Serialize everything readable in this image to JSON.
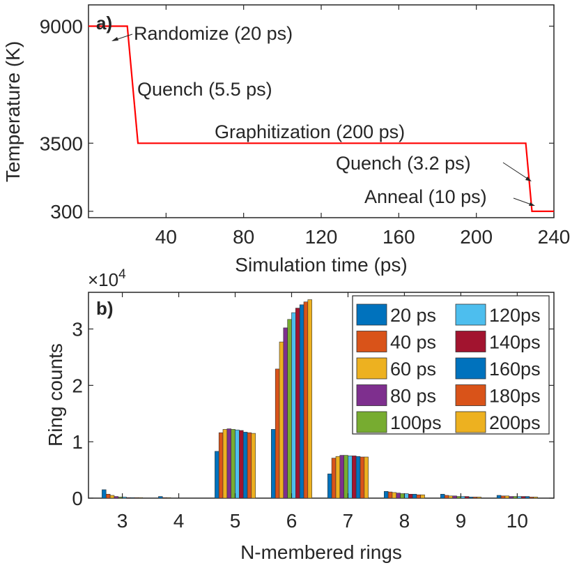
{
  "chart_data": [
    {
      "type": "line",
      "panel_label": "a)",
      "xlabel": "Simulation time (ps)",
      "ylabel": "Temperature (K)",
      "xlim": [
        0,
        240
      ],
      "ylim": [
        0,
        10000
      ],
      "xticks": [
        "40",
        "80",
        "120",
        "160",
        "200",
        "240"
      ],
      "yticks": [
        "300",
        "3500",
        "9000"
      ],
      "series": [
        {
          "name": "Temperature",
          "color": "#ff0000",
          "x": [
            0,
            20,
            25.5,
            225.5,
            228.7,
            240
          ],
          "y": [
            9000,
            9000,
            3500,
            3500,
            300,
            300
          ]
        }
      ],
      "annotations": [
        "Randomize (20 ps)",
        "Quench (5.5 ps)",
        "Graphitization (200 ps)",
        "Quench (3.2 ps)",
        "Anneal (10 ps)"
      ]
    },
    {
      "type": "bar",
      "panel_label": "b)",
      "xlabel": "N-membered rings",
      "ylabel": "Ring counts",
      "y_multiplier": "×10",
      "y_exponent": "4",
      "ylim": [
        0,
        3.65
      ],
      "yticks": [
        "0",
        "1",
        "2",
        "3"
      ],
      "categories": [
        "3",
        "4",
        "5",
        "6",
        "7",
        "8",
        "9",
        "10"
      ],
      "series": [
        {
          "name": "20 ps",
          "color": "#0072bd",
          "values": [
            0.15,
            0.03,
            0.83,
            1.22,
            0.43,
            0.12,
            0.07,
            0.05
          ]
        },
        {
          "name": "40 ps",
          "color": "#d95319",
          "values": [
            0.07,
            0.01,
            1.16,
            2.29,
            0.71,
            0.11,
            0.05,
            0.04
          ]
        },
        {
          "name": "60 ps",
          "color": "#edb120",
          "values": [
            0.05,
            0.01,
            1.22,
            2.77,
            0.74,
            0.1,
            0.04,
            0.04
          ]
        },
        {
          "name": "80 ps",
          "color": "#7e2f8e",
          "values": [
            0.03,
            0.0,
            1.23,
            3.02,
            0.76,
            0.09,
            0.04,
            0.03
          ]
        },
        {
          "name": "100ps",
          "color": "#77ac30",
          "values": [
            0.02,
            0.0,
            1.22,
            3.17,
            0.76,
            0.08,
            0.03,
            0.03
          ]
        },
        {
          "name": "120ps",
          "color": "#4dbeee",
          "values": [
            0.02,
            0.0,
            1.21,
            3.29,
            0.75,
            0.08,
            0.03,
            0.03
          ]
        },
        {
          "name": "140ps",
          "color": "#a2142f",
          "values": [
            0.01,
            0.0,
            1.2,
            3.37,
            0.75,
            0.07,
            0.03,
            0.03
          ]
        },
        {
          "name": "160ps",
          "color": "#0072bd",
          "values": [
            0.01,
            0.0,
            1.17,
            3.43,
            0.74,
            0.07,
            0.02,
            0.03
          ]
        },
        {
          "name": "180ps",
          "color": "#d95319",
          "values": [
            0.01,
            0.0,
            1.16,
            3.48,
            0.73,
            0.06,
            0.02,
            0.02
          ]
        },
        {
          "name": "200ps",
          "color": "#edb120",
          "values": [
            0.01,
            0.0,
            1.15,
            3.52,
            0.73,
            0.06,
            0.02,
            0.02
          ]
        }
      ]
    }
  ]
}
